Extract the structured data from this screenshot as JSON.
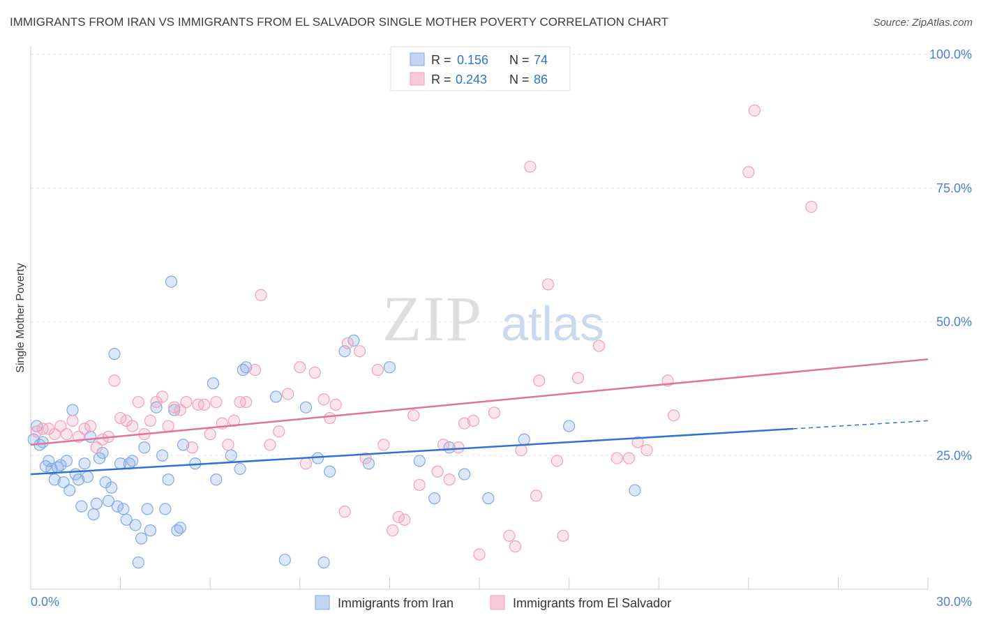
{
  "title": "IMMIGRANTS FROM IRAN VS IMMIGRANTS FROM EL SALVADOR SINGLE MOTHER POVERTY CORRELATION CHART",
  "source": "Source: ZipAtlas.com",
  "watermark": {
    "zip": "ZIP",
    "atlas": "atlas"
  },
  "chart_data": {
    "type": "scatter",
    "ylabel": "Single Mother Poverty",
    "xlim": [
      0,
      30
    ],
    "ylim": [
      0,
      100
    ],
    "x_tick_labels": [
      "0.0%",
      "30.0%"
    ],
    "y_tick_labels": [
      "25.0%",
      "50.0%",
      "75.0%",
      "100.0%"
    ],
    "y_ticks": [
      25,
      50,
      75,
      100
    ],
    "grid": true,
    "legend_placement": "top-center",
    "stats": [
      {
        "r_label": "R =",
        "r": "0.156",
        "n_label": "N =",
        "n": "74"
      },
      {
        "r_label": "R =",
        "r": "0.243",
        "n_label": "N =",
        "n": "86"
      }
    ],
    "series": [
      {
        "name": "Immigrants from Iran",
        "color": "#7fa8e6",
        "line_color": "#2f72d0",
        "trend": {
          "x0": 0,
          "y0": 21.5,
          "x1": 25.5,
          "y1": 30.0,
          "dash_to_x": 30,
          "dash_to_y": 31.5
        },
        "points": [
          [
            0.2,
            30.5
          ],
          [
            0.3,
            27
          ],
          [
            0.5,
            23
          ],
          [
            0.6,
            24
          ],
          [
            0.7,
            22.5
          ],
          [
            0.8,
            20.5
          ],
          [
            0.9,
            22.8
          ],
          [
            1.0,
            23.2
          ],
          [
            1.1,
            20
          ],
          [
            1.2,
            24
          ],
          [
            1.3,
            18.5
          ],
          [
            1.4,
            33.5
          ],
          [
            1.5,
            21.5
          ],
          [
            1.6,
            20.5
          ],
          [
            1.7,
            15.5
          ],
          [
            1.8,
            23.5
          ],
          [
            1.9,
            21
          ],
          [
            2.0,
            28.5
          ],
          [
            2.1,
            14
          ],
          [
            2.2,
            16
          ],
          [
            2.3,
            24.5
          ],
          [
            2.4,
            25.5
          ],
          [
            2.5,
            20
          ],
          [
            2.6,
            16.5
          ],
          [
            2.7,
            19
          ],
          [
            2.8,
            44
          ],
          [
            2.9,
            15.5
          ],
          [
            3.0,
            23.5
          ],
          [
            3.1,
            15
          ],
          [
            3.2,
            13
          ],
          [
            3.3,
            23.5
          ],
          [
            3.4,
            24
          ],
          [
            3.5,
            12
          ],
          [
            3.6,
            5
          ],
          [
            3.7,
            9.5
          ],
          [
            3.8,
            26.5
          ],
          [
            3.9,
            15
          ],
          [
            4.0,
            11
          ],
          [
            4.2,
            34
          ],
          [
            4.4,
            25
          ],
          [
            4.5,
            15
          ],
          [
            4.6,
            20.5
          ],
          [
            4.7,
            57.5
          ],
          [
            4.8,
            33.5
          ],
          [
            4.9,
            11
          ],
          [
            5.0,
            11.5
          ],
          [
            5.1,
            27
          ],
          [
            5.5,
            23.5
          ],
          [
            6.1,
            38.5
          ],
          [
            6.2,
            20.5
          ],
          [
            6.7,
            25
          ],
          [
            7.0,
            22.5
          ],
          [
            7.1,
            41
          ],
          [
            7.2,
            41.5
          ],
          [
            8.2,
            36
          ],
          [
            8.5,
            5.5
          ],
          [
            9.2,
            34
          ],
          [
            9.6,
            24.5
          ],
          [
            9.8,
            5
          ],
          [
            10.0,
            22
          ],
          [
            10.5,
            44.5
          ],
          [
            10.8,
            46.5
          ],
          [
            11.3,
            23.5
          ],
          [
            12.0,
            41.5
          ],
          [
            13.0,
            24
          ],
          [
            13.5,
            17
          ],
          [
            14.0,
            26.5
          ],
          [
            14.5,
            21.5
          ],
          [
            15.3,
            17
          ],
          [
            16.5,
            28
          ],
          [
            18.0,
            30.5
          ],
          [
            20.2,
            18.5
          ],
          [
            0.1,
            28
          ],
          [
            0.4,
            27.5
          ]
        ]
      },
      {
        "name": "Immigrants from El Salvador",
        "color": "#f0a0bb",
        "line_color": "#e3729b",
        "trend": {
          "x0": 0,
          "y0": 27.0,
          "x1": 30,
          "y1": 43.0
        },
        "points": [
          [
            0.2,
            29.5
          ],
          [
            0.4,
            30
          ],
          [
            0.6,
            30
          ],
          [
            0.8,
            29
          ],
          [
            1.0,
            30.5
          ],
          [
            1.2,
            29
          ],
          [
            1.4,
            31.5
          ],
          [
            1.6,
            28.5
          ],
          [
            1.8,
            30
          ],
          [
            2.0,
            30.5
          ],
          [
            2.2,
            26.5
          ],
          [
            2.4,
            28
          ],
          [
            2.6,
            28.5
          ],
          [
            2.8,
            39
          ],
          [
            3.0,
            32
          ],
          [
            3.2,
            31.5
          ],
          [
            3.4,
            30.5
          ],
          [
            3.6,
            35
          ],
          [
            3.8,
            29
          ],
          [
            4.0,
            31.5
          ],
          [
            4.2,
            35
          ],
          [
            4.4,
            36
          ],
          [
            4.6,
            30.5
          ],
          [
            4.8,
            34
          ],
          [
            5.0,
            33.5
          ],
          [
            5.2,
            35
          ],
          [
            5.4,
            26.5
          ],
          [
            5.6,
            34.5
          ],
          [
            5.8,
            34.5
          ],
          [
            6.0,
            29
          ],
          [
            6.2,
            35
          ],
          [
            6.4,
            31
          ],
          [
            6.6,
            27
          ],
          [
            6.8,
            31.5
          ],
          [
            7.0,
            35
          ],
          [
            7.2,
            35
          ],
          [
            7.5,
            41
          ],
          [
            7.7,
            55
          ],
          [
            8.0,
            27
          ],
          [
            8.3,
            29.5
          ],
          [
            8.6,
            36.5
          ],
          [
            9.0,
            41.5
          ],
          [
            9.2,
            23.5
          ],
          [
            9.5,
            40.5
          ],
          [
            9.8,
            35.5
          ],
          [
            10.0,
            32
          ],
          [
            10.2,
            34.5
          ],
          [
            10.5,
            14.5
          ],
          [
            10.6,
            46
          ],
          [
            11.0,
            44.5
          ],
          [
            11.2,
            24.5
          ],
          [
            11.6,
            41
          ],
          [
            11.8,
            27
          ],
          [
            12.1,
            11
          ],
          [
            12.3,
            13.5
          ],
          [
            12.5,
            13
          ],
          [
            12.8,
            32.5
          ],
          [
            13.0,
            19.5
          ],
          [
            13.6,
            22
          ],
          [
            13.8,
            27
          ],
          [
            14.0,
            20.5
          ],
          [
            14.3,
            26.5
          ],
          [
            14.5,
            31
          ],
          [
            14.8,
            31.5
          ],
          [
            15.0,
            6.5
          ],
          [
            15.5,
            33
          ],
          [
            16.0,
            10
          ],
          [
            16.2,
            8
          ],
          [
            16.4,
            26
          ],
          [
            16.7,
            79
          ],
          [
            16.9,
            17.5
          ],
          [
            17.0,
            39
          ],
          [
            17.3,
            57
          ],
          [
            17.6,
            24
          ],
          [
            17.8,
            10
          ],
          [
            18.3,
            39.5
          ],
          [
            19.0,
            45.5
          ],
          [
            19.6,
            24.5
          ],
          [
            20.0,
            24.5
          ],
          [
            20.3,
            27.5
          ],
          [
            20.6,
            26
          ],
          [
            21.3,
            39
          ],
          [
            21.5,
            32.5
          ],
          [
            24.0,
            78
          ],
          [
            24.2,
            89.5
          ],
          [
            26.1,
            71.5
          ]
        ]
      }
    ]
  }
}
